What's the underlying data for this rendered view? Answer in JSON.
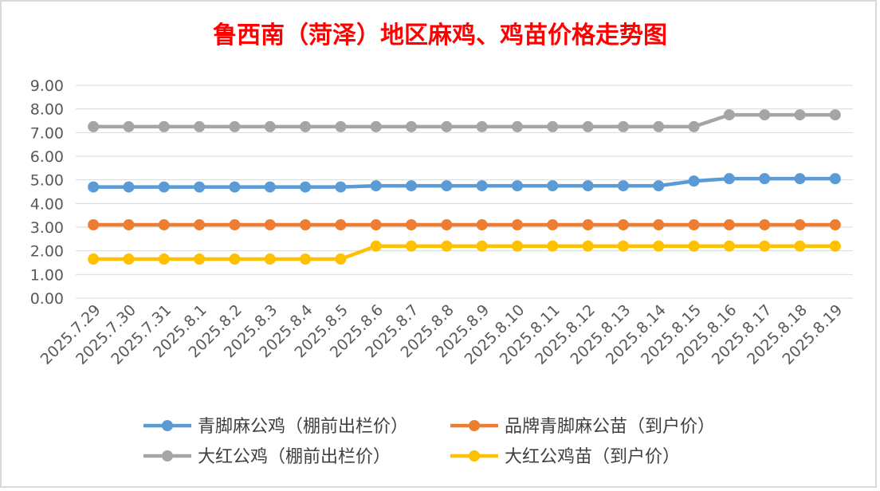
{
  "chart_data": {
    "type": "line",
    "title": "鲁西南（菏泽）地区麻鸡、鸡苗价格走势图",
    "title_color": "#ff0000",
    "xlabel": "",
    "ylabel": "",
    "ylim": [
      0,
      9
    ],
    "ytick_step": 1,
    "ytick_labels": [
      "0.00",
      "1.00",
      "2.00",
      "3.00",
      "4.00",
      "5.00",
      "6.00",
      "7.00",
      "8.00",
      "9.00"
    ],
    "grid": true,
    "legend_position": "bottom",
    "categories": [
      "2025.7.29",
      "2025.7.30",
      "2025.7.31",
      "2025.8.1",
      "2025.8.2",
      "2025.8.3",
      "2025.8.4",
      "2025.8.5",
      "2025.8.6",
      "2025.8.7",
      "2025.8.8",
      "2025.8.9",
      "2025.8.10",
      "2025.8.11",
      "2025.8.12",
      "2025.8.13",
      "2025.8.14",
      "2025.8.15",
      "2025.8.16",
      "2025.8.17",
      "2025.8.18",
      "2025.8.19"
    ],
    "series": [
      {
        "name": "青脚麻公鸡（棚前出栏价）",
        "color": "#5b9bd5",
        "values": [
          4.7,
          4.7,
          4.7,
          4.7,
          4.7,
          4.7,
          4.7,
          4.7,
          4.75,
          4.75,
          4.75,
          4.75,
          4.75,
          4.75,
          4.75,
          4.75,
          4.75,
          4.95,
          5.05,
          5.05,
          5.05,
          5.05
        ]
      },
      {
        "name": "品牌青脚麻公苗（到户价）",
        "color": "#ed7d31",
        "values": [
          3.1,
          3.1,
          3.1,
          3.1,
          3.1,
          3.1,
          3.1,
          3.1,
          3.1,
          3.1,
          3.1,
          3.1,
          3.1,
          3.1,
          3.1,
          3.1,
          3.1,
          3.1,
          3.1,
          3.1,
          3.1,
          3.1
        ]
      },
      {
        "name": "大红公鸡（棚前出栏价）",
        "color": "#a5a5a5",
        "values": [
          7.25,
          7.25,
          7.25,
          7.25,
          7.25,
          7.25,
          7.25,
          7.25,
          7.25,
          7.25,
          7.25,
          7.25,
          7.25,
          7.25,
          7.25,
          7.25,
          7.25,
          7.25,
          7.75,
          7.75,
          7.75,
          7.75
        ]
      },
      {
        "name": "大红公鸡苗（到户价）",
        "color": "#ffc000",
        "values": [
          1.65,
          1.65,
          1.65,
          1.65,
          1.65,
          1.65,
          1.65,
          1.65,
          2.2,
          2.2,
          2.2,
          2.2,
          2.2,
          2.2,
          2.2,
          2.2,
          2.2,
          2.2,
          2.2,
          2.2,
          2.2,
          2.2
        ]
      }
    ]
  }
}
